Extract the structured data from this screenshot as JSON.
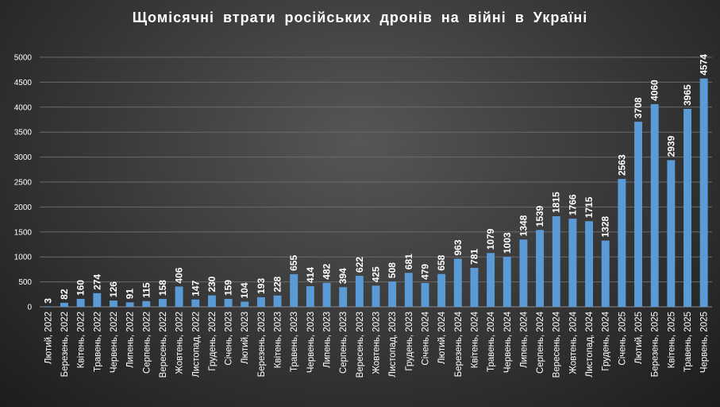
{
  "chart_data": {
    "type": "bar",
    "title": "Щомісячні  втрати  російських  дронів  на  війні  в  Україні",
    "xlabel": "",
    "ylabel": "",
    "ylim": [
      0,
      5000
    ],
    "yticks": [
      0,
      500,
      1000,
      1500,
      2000,
      2500,
      3000,
      3500,
      4000,
      4500,
      5000
    ],
    "grid": true,
    "legend": "none",
    "bar_color": "#5b9bd5",
    "categories": [
      "Лютий, 2022",
      "Березень, 2022",
      "Квітень, 2022",
      "Травень, 2022",
      "Червень, 2022",
      "Липень, 2022",
      "Серпень, 2022",
      "Вересень, 2022",
      "Жовтень, 2022",
      "Листопад, 2022",
      "Грудень, 2022",
      "Січень, 2023",
      "Лютий, 2023",
      "Березень, 2023",
      "Квітень, 2023",
      "Травень, 2023",
      "Червень, 2023",
      "Липень, 2023",
      "Серпень, 2023",
      "Вересень, 2023",
      "Жовтень, 2023",
      "Листопад, 2023",
      "Грудень, 2023",
      "Січень, 2024",
      "Лютий, 2024",
      "Березень, 2024",
      "Квітень, 2024",
      "Травень, 2024",
      "Червень, 2024",
      "Липень, 2024",
      "Серпень, 2024",
      "Вересень, 2024",
      "Жовтень, 2024",
      "Листопад, 2024",
      "Грудень, 2024",
      "Січень, 2025",
      "Лютий, 2025",
      "Березень, 2025",
      "Квітень, 2025",
      "Травень, 2025",
      "Червень, 2025"
    ],
    "values": [
      3,
      82,
      160,
      274,
      126,
      91,
      115,
      158,
      406,
      147,
      230,
      159,
      104,
      193,
      228,
      655,
      414,
      482,
      394,
      622,
      425,
      508,
      681,
      479,
      658,
      963,
      781,
      1079,
      1003,
      1348,
      1539,
      1815,
      1766,
      1715,
      1328,
      2563,
      3708,
      4060,
      2939,
      3965,
      4574
    ]
  }
}
